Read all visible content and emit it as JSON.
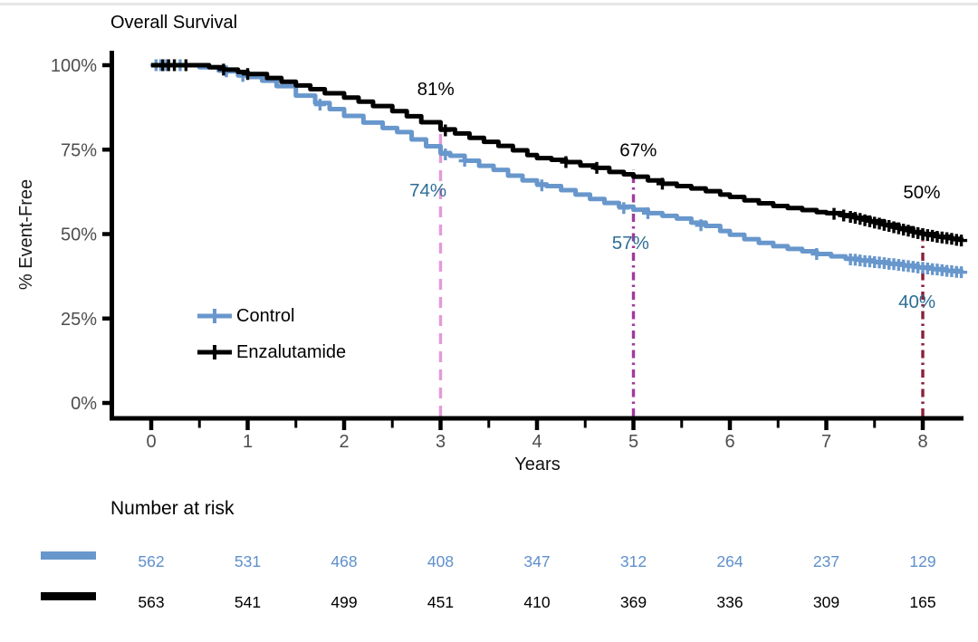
{
  "chart_data": {
    "type": "line",
    "subtype": "kaplan-meier-step",
    "title": "Overall Survival",
    "xlabel": "Years",
    "ylabel": "% Event-Free",
    "xlim": [
      0,
      8.4
    ],
    "ylim": [
      0,
      100
    ],
    "grid": false,
    "x_axis": {
      "ticks": [
        0,
        1,
        2,
        3,
        4,
        5,
        6,
        7,
        8
      ],
      "tick_labels": [
        "0",
        "1",
        "2",
        "3",
        "4",
        "5",
        "6",
        "7",
        "8"
      ],
      "minor_ticks": [
        0.5,
        1.5,
        2.5,
        3.5,
        4.5,
        5.5,
        6.5,
        7.5
      ]
    },
    "y_axis": {
      "ticks": [
        0,
        25,
        50,
        75,
        100
      ],
      "tick_labels": [
        "0%",
        "25%",
        "50%",
        "75%",
        "100%"
      ]
    },
    "legend": {
      "position": "inside-left",
      "entries": [
        {
          "label": "Control",
          "color": "#6897CC"
        },
        {
          "label": "Enzalutamide",
          "color": "#000000"
        }
      ]
    },
    "series": [
      {
        "name": "Control",
        "color": "#6897CC",
        "points": [
          [
            0,
            100
          ],
          [
            0.35,
            100
          ],
          [
            0.5,
            99.4
          ],
          [
            0.7,
            98.4
          ],
          [
            0.78,
            98.2
          ],
          [
            0.9,
            97
          ],
          [
            1,
            96.5
          ],
          [
            1.15,
            95.4
          ],
          [
            1.3,
            93.8
          ],
          [
            1.5,
            91
          ],
          [
            1.7,
            88.8
          ],
          [
            1.85,
            87
          ],
          [
            2,
            85
          ],
          [
            2.2,
            83
          ],
          [
            2.4,
            81.4
          ],
          [
            2.55,
            80.2
          ],
          [
            2.7,
            78
          ],
          [
            2.85,
            76
          ],
          [
            3,
            74
          ],
          [
            3.1,
            73.2
          ],
          [
            3.25,
            71.7
          ],
          [
            3.4,
            70.2
          ],
          [
            3.55,
            69
          ],
          [
            3.7,
            67.3
          ],
          [
            3.85,
            65.9
          ],
          [
            4,
            64.7
          ],
          [
            4.1,
            64.2
          ],
          [
            4.25,
            63
          ],
          [
            4.4,
            61.7
          ],
          [
            4.55,
            60.4
          ],
          [
            4.7,
            59.2
          ],
          [
            4.85,
            58.1
          ],
          [
            5,
            57.2
          ],
          [
            5.15,
            56.2
          ],
          [
            5.3,
            55.4
          ],
          [
            5.45,
            54.6
          ],
          [
            5.6,
            53.4
          ],
          [
            5.75,
            52.4
          ],
          [
            5.9,
            50.9
          ],
          [
            6,
            49.8
          ],
          [
            6.15,
            48.5
          ],
          [
            6.3,
            47.4
          ],
          [
            6.45,
            46.4
          ],
          [
            6.6,
            45.6
          ],
          [
            6.75,
            44.9
          ],
          [
            6.9,
            44.1
          ],
          [
            7.05,
            43.4
          ],
          [
            7.2,
            42.7
          ],
          [
            7.35,
            42.2
          ],
          [
            7.5,
            41.7
          ],
          [
            7.65,
            41.2
          ],
          [
            7.8,
            40.7
          ],
          [
            7.95,
            40.1
          ],
          [
            8.1,
            39.6
          ],
          [
            8.25,
            39.1
          ],
          [
            8.4,
            38.7
          ]
        ],
        "censor_marks": [
          [
            0.05,
            100
          ],
          [
            0.1,
            100
          ],
          [
            0.16,
            100
          ],
          [
            0.3,
            100
          ],
          [
            0.78,
            98.2
          ],
          [
            0.95,
            96.8
          ],
          [
            1.75,
            88.3
          ],
          [
            3.05,
            73.6
          ],
          [
            3.25,
            71.7
          ],
          [
            4.05,
            64.4
          ],
          [
            4.9,
            57.7
          ],
          [
            5.15,
            56.2
          ],
          [
            5.7,
            52.6
          ],
          [
            6.9,
            44.1
          ],
          [
            7.25,
            42.5
          ],
          [
            7.3,
            42.4
          ],
          [
            7.35,
            42.2
          ],
          [
            7.4,
            42
          ],
          [
            7.45,
            41.9
          ],
          [
            7.5,
            41.7
          ],
          [
            7.55,
            41.6
          ],
          [
            7.6,
            41.4
          ],
          [
            7.65,
            41.2
          ],
          [
            7.7,
            41.1
          ],
          [
            7.75,
            40.9
          ],
          [
            7.8,
            40.7
          ],
          [
            7.85,
            40.5
          ],
          [
            7.9,
            40.3
          ],
          [
            7.95,
            40.1
          ],
          [
            8,
            40
          ],
          [
            8.05,
            39.8
          ],
          [
            8.1,
            39.6
          ],
          [
            8.15,
            39.5
          ],
          [
            8.2,
            39.3
          ],
          [
            8.25,
            39.1
          ],
          [
            8.3,
            39
          ],
          [
            8.35,
            38.8
          ],
          [
            8.4,
            38.7
          ]
        ]
      },
      {
        "name": "Enzalutamide",
        "color": "#000000",
        "points": [
          [
            0,
            100
          ],
          [
            0.45,
            100
          ],
          [
            0.6,
            99.4
          ],
          [
            0.75,
            98.7
          ],
          [
            0.9,
            98
          ],
          [
            1,
            97.4
          ],
          [
            1.2,
            96.2
          ],
          [
            1.35,
            95.1
          ],
          [
            1.5,
            94
          ],
          [
            1.65,
            92.9
          ],
          [
            1.8,
            91.7
          ],
          [
            2,
            90.4
          ],
          [
            2.15,
            89.2
          ],
          [
            2.3,
            87.9
          ],
          [
            2.5,
            86.4
          ],
          [
            2.65,
            84.9
          ],
          [
            2.8,
            83.1
          ],
          [
            3,
            81
          ],
          [
            3.15,
            79.8
          ],
          [
            3.3,
            78.5
          ],
          [
            3.45,
            77.3
          ],
          [
            3.6,
            76.1
          ],
          [
            3.75,
            74.8
          ],
          [
            3.9,
            73.4
          ],
          [
            4,
            72.5
          ],
          [
            4.15,
            72
          ],
          [
            4.3,
            71.3
          ],
          [
            4.45,
            70.3
          ],
          [
            4.6,
            69.6
          ],
          [
            4.75,
            68.4
          ],
          [
            4.9,
            67.7
          ],
          [
            5,
            67
          ],
          [
            5.15,
            65.9
          ],
          [
            5.3,
            64.9
          ],
          [
            5.45,
            64.2
          ],
          [
            5.6,
            63.5
          ],
          [
            5.75,
            62.7
          ],
          [
            5.9,
            61.7
          ],
          [
            6,
            61
          ],
          [
            6.15,
            60
          ],
          [
            6.3,
            59.1
          ],
          [
            6.45,
            58.3
          ],
          [
            6.6,
            57.7
          ],
          [
            6.75,
            57.1
          ],
          [
            6.9,
            56.5
          ],
          [
            7,
            56.2
          ],
          [
            7.15,
            55.6
          ],
          [
            7.3,
            54.8
          ],
          [
            7.45,
            53.8
          ],
          [
            7.6,
            52.7
          ],
          [
            7.75,
            51.7
          ],
          [
            7.9,
            50.6
          ],
          [
            8,
            50
          ],
          [
            8.15,
            49.2
          ],
          [
            8.3,
            48.6
          ],
          [
            8.4,
            48.1
          ]
        ],
        "censor_marks": [
          [
            0.12,
            100
          ],
          [
            0.18,
            100
          ],
          [
            0.24,
            100
          ],
          [
            0.36,
            100
          ],
          [
            0.75,
            98.7
          ],
          [
            1,
            97.4
          ],
          [
            3.05,
            80.7
          ],
          [
            4.3,
            71.3
          ],
          [
            4.62,
            69.6
          ],
          [
            5.3,
            64.9
          ],
          [
            7.08,
            56
          ],
          [
            7.18,
            55.5
          ],
          [
            7.25,
            55.1
          ],
          [
            7.3,
            54.8
          ],
          [
            7.35,
            54.5
          ],
          [
            7.4,
            54.1
          ],
          [
            7.45,
            53.8
          ],
          [
            7.5,
            53.4
          ],
          [
            7.55,
            53.1
          ],
          [
            7.6,
            52.7
          ],
          [
            7.65,
            52.4
          ],
          [
            7.7,
            52
          ],
          [
            7.75,
            51.7
          ],
          [
            7.8,
            51.3
          ],
          [
            7.85,
            51
          ],
          [
            7.9,
            50.6
          ],
          [
            7.95,
            50.3
          ],
          [
            8,
            50
          ],
          [
            8.05,
            49.7
          ],
          [
            8.1,
            49.5
          ],
          [
            8.15,
            49.2
          ],
          [
            8.2,
            49
          ],
          [
            8.25,
            48.8
          ],
          [
            8.3,
            48.6
          ],
          [
            8.35,
            48.3
          ],
          [
            8.4,
            48.1
          ]
        ]
      }
    ],
    "ref_lines": [
      {
        "x": 3,
        "top_pct": 82.5,
        "color": "#E49AD9",
        "style": "dashed"
      },
      {
        "x": 5,
        "top_pct": 69,
        "color": "#A23A9E",
        "style": "dashdot"
      },
      {
        "x": 8,
        "top_pct": 51.7,
        "color": "#8B2039",
        "style": "dashdot"
      }
    ],
    "annotations": [
      {
        "x": 2.95,
        "pct": 93,
        "label": "81%",
        "color": "#000000"
      },
      {
        "x": 2.87,
        "pct": 63,
        "label": "74%",
        "color": "#2D6F96"
      },
      {
        "x": 5.05,
        "pct": 75,
        "label": "67%",
        "color": "#000000"
      },
      {
        "x": 4.97,
        "pct": 47.5,
        "label": "57%",
        "color": "#2D6F96"
      },
      {
        "x": 7.99,
        "pct": 62.5,
        "label": "50%",
        "color": "#000000"
      },
      {
        "x": 7.94,
        "pct": 30,
        "label": "40%",
        "color": "#2D6F96"
      }
    ],
    "colors": {
      "axis": "#000000",
      "tick_labels": "#4d4d4d",
      "control_blue": "#6897CC",
      "annotation_teal": "#2D6F96",
      "ref_pink": "#E49AD9",
      "ref_purple": "#A23A9E",
      "ref_maroon": "#8B2039"
    },
    "risk_table": {
      "title": "Number at risk",
      "time_points": [
        0,
        1,
        2,
        3,
        4,
        5,
        6,
        7,
        8
      ],
      "groups": [
        {
          "name": "Control",
          "color": "#6897CC",
          "text_color": "#5E90CB",
          "counts": [
            562,
            531,
            468,
            408,
            347,
            312,
            264,
            237,
            129
          ]
        },
        {
          "name": "Enzalutamide",
          "color": "#000000",
          "text_color": "#000000",
          "counts": [
            563,
            541,
            499,
            451,
            410,
            369,
            336,
            309,
            165
          ]
        }
      ]
    }
  }
}
